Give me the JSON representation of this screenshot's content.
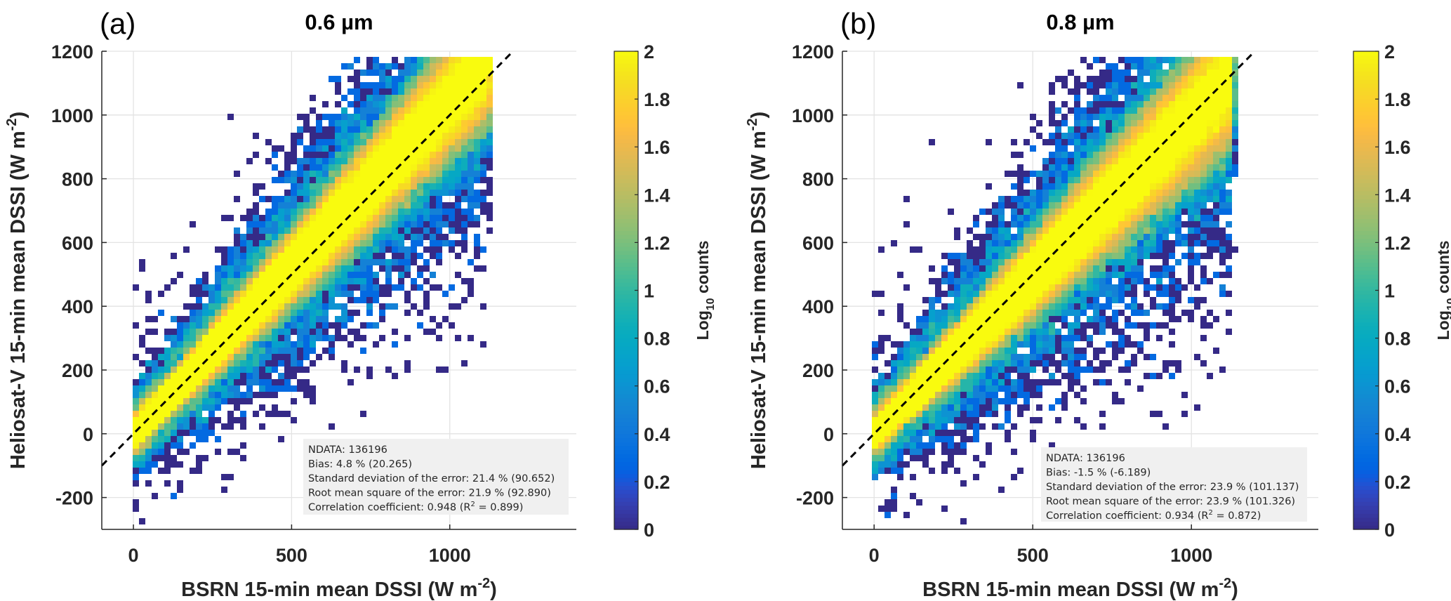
{
  "chart_data": [
    {
      "type": "heatmap",
      "panel_label": "(a)",
      "title": "0.6 µm",
      "xlabel": "BSRN 15-min mean DSSI (W m",
      "xlabel_sup": "-2",
      "ylabel": "Heliosat-V 15-min mean DSSI (W m",
      "ylabel_sup": "-2",
      "xlim": [
        -100,
        1400
      ],
      "ylim": [
        -300,
        1200
      ],
      "xticks": [
        0,
        500,
        1000
      ],
      "yticks": [
        -200,
        0,
        200,
        400,
        600,
        800,
        1000,
        1200
      ],
      "grid": true,
      "reference_line": "1:1 dashed",
      "colorbar": {
        "label": "Log",
        "label_sub": "10",
        "label_rest": " counts",
        "range": [
          0,
          2
        ],
        "ticks": [
          "0",
          "0.2",
          "0.4",
          "0.6",
          "0.8",
          "1",
          "1.2",
          "1.4",
          "1.6",
          "1.8",
          "2"
        ]
      },
      "stats": {
        "ndata": "NDATA: 136196",
        "bias": "Bias: 4.8 % (20.265)",
        "std": "Standard deviation of the error: 21.4 % (90.652)",
        "rmse": "Root mean square of the error: 21.9 % (92.890)",
        "corr": "Correlation coefficient:  0.948 (R",
        "corr_sup": "2",
        "corr_end": " = 0.899)"
      },
      "model": {
        "n": 136196,
        "bias": 20.265,
        "std": 90.652,
        "seed": 7
      }
    },
    {
      "type": "heatmap",
      "panel_label": "(b)",
      "title": "0.8 µm",
      "xlabel": "BSRN 15-min mean DSSI (W m",
      "xlabel_sup": "-2",
      "ylabel": "Heliosat-V 15-min mean DSSI (W m",
      "ylabel_sup": "-2",
      "xlim": [
        -100,
        1400
      ],
      "ylim": [
        -300,
        1200
      ],
      "xticks": [
        0,
        500,
        1000
      ],
      "yticks": [
        -200,
        0,
        200,
        400,
        600,
        800,
        1000,
        1200
      ],
      "grid": true,
      "reference_line": "1:1 dashed",
      "colorbar": {
        "label": "Log",
        "label_sub": "10",
        "label_rest": " counts",
        "range": [
          0,
          2
        ],
        "ticks": [
          "0",
          "0.2",
          "0.4",
          "0.6",
          "0.8",
          "1",
          "1.2",
          "1.4",
          "1.6",
          "1.8",
          "2"
        ]
      },
      "stats": {
        "ndata": "NDATA: 136196",
        "bias": "Bias: -1.5 % (-6.189)",
        "std": "Standard deviation of the error: 23.9 % (101.137)",
        "rmse": "Root mean square of the error: 23.9 % (101.326)",
        "corr": "Correlation coefficient:  0.934 (R",
        "corr_sup": "2",
        "corr_end": " = 0.872)"
      },
      "model": {
        "n": 136196,
        "bias": -6.189,
        "std": 101.137,
        "seed": 13
      }
    }
  ]
}
